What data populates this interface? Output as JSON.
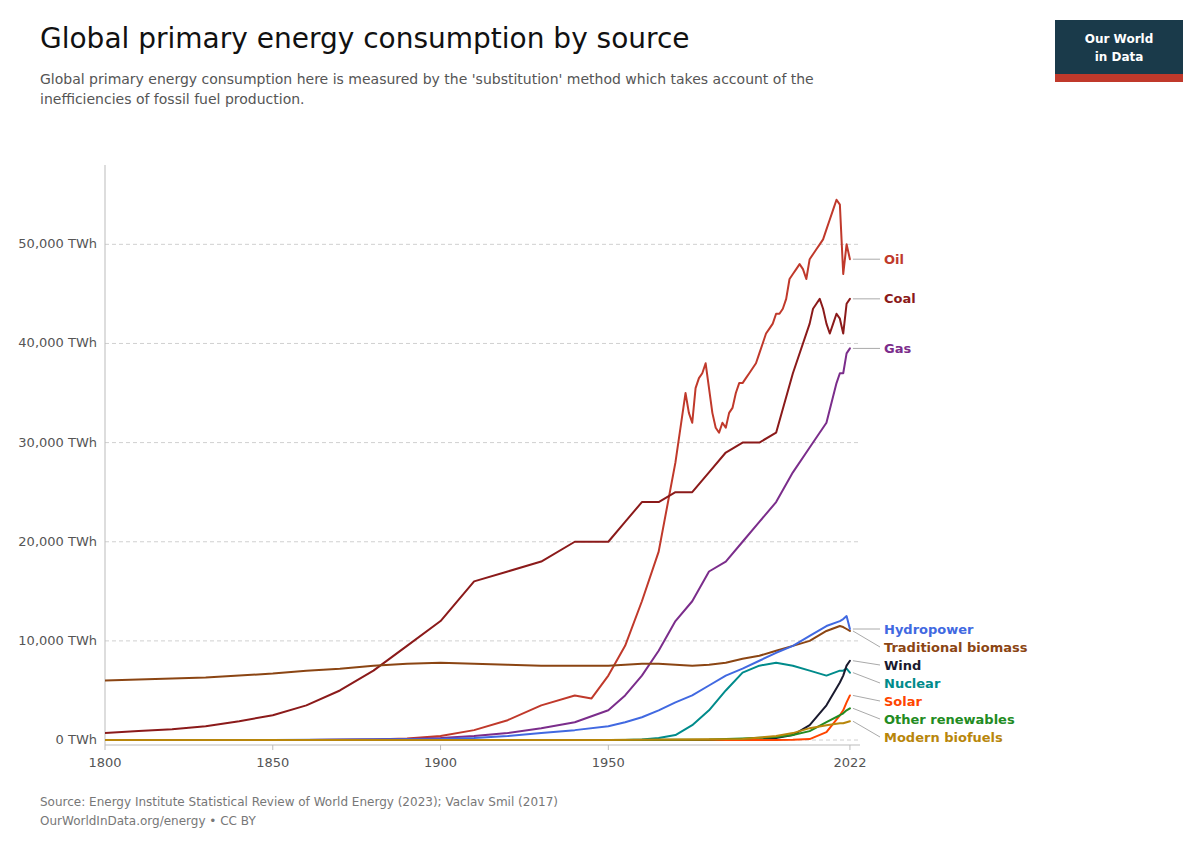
{
  "chart_data": {
    "type": "line",
    "title": "Global primary energy consumption by source",
    "subtitle": "Global primary energy consumption here is measured by the 'substitution' method which takes account of the\ninefficiencies of fossil fuel production.",
    "source": "Source: Energy Institute Statistical Review of World Energy (2023); Vaclav Smil (2017)\nOurWorldInData.org/energy • CC BY",
    "annotations": [
      "Our World",
      "in Data"
    ],
    "xlim": [
      1800,
      2025
    ],
    "ylim": [
      -500,
      58000
    ],
    "xticks": [
      1800,
      1850,
      1900,
      1950,
      2022
    ],
    "yticks": [
      {
        "value": 0,
        "label": "0 TWh"
      },
      {
        "value": 10000,
        "label": "10,000 TWh"
      },
      {
        "value": 20000,
        "label": "20,000 TWh"
      },
      {
        "value": 30000,
        "label": "30,000 TWh"
      },
      {
        "value": 40000,
        "label": "40,000 TWh"
      },
      {
        "value": 50000,
        "label": "50,000 TWh"
      }
    ],
    "grid": true,
    "series": [
      {
        "name": "Oil",
        "color": "#c0392b",
        "x": [
          1800,
          1820,
          1840,
          1850,
          1860,
          1870,
          1880,
          1890,
          1900,
          1910,
          1920,
          1930,
          1940,
          1945,
          1950,
          1955,
          1960,
          1965,
          1970,
          1973,
          1974,
          1975,
          1976,
          1977,
          1978,
          1979,
          1980,
          1981,
          1982,
          1983,
          1984,
          1985,
          1986,
          1987,
          1988,
          1989,
          1990,
          1991,
          1992,
          1993,
          1994,
          1995,
          1996,
          1997,
          1998,
          1999,
          2000,
          2001,
          2002,
          2003,
          2004,
          2005,
          2006,
          2007,
          2008,
          2009,
          2010,
          2011,
          2012,
          2013,
          2014,
          2015,
          2016,
          2017,
          2018,
          2019,
          2020,
          2021,
          2022
        ],
        "values": [
          0,
          0,
          0,
          0,
          10,
          30,
          60,
          150,
          400,
          1000,
          2000,
          3500,
          4500,
          4200,
          6500,
          9500,
          14000,
          19000,
          28000,
          35000,
          33000,
          32000,
          35500,
          36500,
          37000,
          38000,
          35500,
          33000,
          31500,
          31000,
          32000,
          31500,
          33000,
          33500,
          35000,
          36000,
          36000,
          36500,
          37000,
          37500,
          38000,
          39000,
          40000,
          41000,
          41500,
          42000,
          43000,
          43000,
          43500,
          44500,
          46500,
          47000,
          47500,
          48000,
          47500,
          46500,
          48500,
          49000,
          49500,
          50000,
          50500,
          51500,
          52500,
          53500,
          54500,
          54000,
          47000,
          50000,
          48500
        ]
      },
      {
        "name": "Coal",
        "color": "#8B1A1A",
        "x": [
          1800,
          1810,
          1820,
          1830,
          1840,
          1850,
          1860,
          1870,
          1880,
          1890,
          1900,
          1910,
          1920,
          1930,
          1940,
          1950,
          1955,
          1960,
          1965,
          1970,
          1975,
          1980,
          1985,
          1990,
          1995,
          2000,
          2005,
          2010,
          2011,
          2012,
          2013,
          2014,
          2015,
          2016,
          2017,
          2018,
          2019,
          2020,
          2021,
          2022
        ],
        "values": [
          700,
          900,
          1100,
          1400,
          1900,
          2500,
          3500,
          5000,
          7000,
          9500,
          12000,
          16000,
          17000,
          18000,
          20000,
          20000,
          22000,
          24000,
          24000,
          25000,
          25000,
          27000,
          29000,
          30000,
          30000,
          31000,
          37000,
          42000,
          43500,
          44000,
          44500,
          43500,
          42000,
          41000,
          42000,
          43000,
          42500,
          41000,
          44000,
          44500
        ]
      },
      {
        "name": "Gas",
        "color": "#7B2D8B",
        "x": [
          1800,
          1850,
          1860,
          1870,
          1880,
          1890,
          1900,
          1910,
          1920,
          1930,
          1940,
          1950,
          1955,
          1960,
          1965,
          1970,
          1975,
          1980,
          1985,
          1990,
          1995,
          2000,
          2005,
          2010,
          2015,
          2018,
          2019,
          2020,
          2021,
          2022
        ],
        "values": [
          0,
          0,
          10,
          20,
          50,
          100,
          200,
          400,
          700,
          1200,
          1800,
          3000,
          4500,
          6500,
          9000,
          12000,
          14000,
          17000,
          18000,
          20000,
          22000,
          24000,
          27000,
          29500,
          32000,
          36000,
          37000,
          37000,
          39000,
          39500
        ]
      },
      {
        "name": "Traditional biomass",
        "color": "#8B4513",
        "x": [
          1800,
          1810,
          1820,
          1830,
          1840,
          1850,
          1860,
          1870,
          1880,
          1890,
          1900,
          1910,
          1920,
          1930,
          1940,
          1950,
          1955,
          1960,
          1965,
          1970,
          1975,
          1980,
          1985,
          1990,
          1995,
          2000,
          2005,
          2010,
          2015,
          2019,
          2020,
          2021,
          2022
        ],
        "values": [
          6000,
          6100,
          6200,
          6300,
          6500,
          6700,
          7000,
          7200,
          7500,
          7700,
          7800,
          7700,
          7600,
          7500,
          7500,
          7500,
          7600,
          7700,
          7700,
          7600,
          7500,
          7600,
          7800,
          8200,
          8500,
          9000,
          9500,
          10000,
          11000,
          11500,
          11400,
          11200,
          11000
        ]
      },
      {
        "name": "Hydropower",
        "color": "#4169E1",
        "x": [
          1800,
          1850,
          1900,
          1910,
          1920,
          1930,
          1940,
          1950,
          1955,
          1960,
          1965,
          1970,
          1975,
          1980,
          1985,
          1990,
          1995,
          2000,
          2005,
          2010,
          2015,
          2019,
          2020,
          2021,
          2022
        ],
        "values": [
          0,
          0,
          100,
          200,
          400,
          700,
          1000,
          1400,
          1800,
          2300,
          3000,
          3800,
          4500,
          5500,
          6500,
          7200,
          8000,
          8800,
          9500,
          10500,
          11500,
          12000,
          12200,
          12500,
          11200
        ]
      },
      {
        "name": "Nuclear",
        "color": "#008B8B",
        "x": [
          1800,
          1900,
          1955,
          1960,
          1965,
          1970,
          1975,
          1980,
          1985,
          1990,
          1995,
          2000,
          2005,
          2010,
          2015,
          2019,
          2020,
          2021,
          2022
        ],
        "values": [
          0,
          0,
          0,
          50,
          200,
          500,
          1500,
          3000,
          5000,
          6800,
          7500,
          7800,
          7500,
          7000,
          6500,
          7000,
          7000,
          7200,
          6800
        ]
      },
      {
        "name": "Wind",
        "color": "#1a1a2e",
        "x": [
          1800,
          1990,
          1995,
          2000,
          2005,
          2010,
          2015,
          2019,
          2020,
          2021,
          2022
        ],
        "values": [
          0,
          0,
          50,
          200,
          500,
          1500,
          3500,
          5800,
          6500,
          7500,
          8000
        ]
      },
      {
        "name": "Solar",
        "color": "#FF4500",
        "x": [
          1800,
          2000,
          2005,
          2010,
          2015,
          2019,
          2020,
          2021,
          2022
        ],
        "values": [
          0,
          5,
          20,
          100,
          800,
          2500,
          3000,
          3800,
          4500
        ]
      },
      {
        "name": "Other renewables",
        "color": "#228B22",
        "x": [
          1800,
          1900,
          1950,
          1980,
          1990,
          2000,
          2005,
          2010,
          2015,
          2019,
          2020,
          2021,
          2022
        ],
        "values": [
          0,
          0,
          0,
          50,
          150,
          300,
          500,
          900,
          1800,
          2500,
          2700,
          3000,
          3200
        ]
      },
      {
        "name": "Modern biofuels",
        "color": "#B8860B",
        "x": [
          1800,
          1900,
          1950,
          1990,
          2000,
          2005,
          2010,
          2015,
          2019,
          2020,
          2021,
          2022
        ],
        "values": [
          0,
          0,
          0,
          100,
          400,
          700,
          1200,
          1500,
          1700,
          1700,
          1800,
          1900
        ]
      }
    ]
  }
}
